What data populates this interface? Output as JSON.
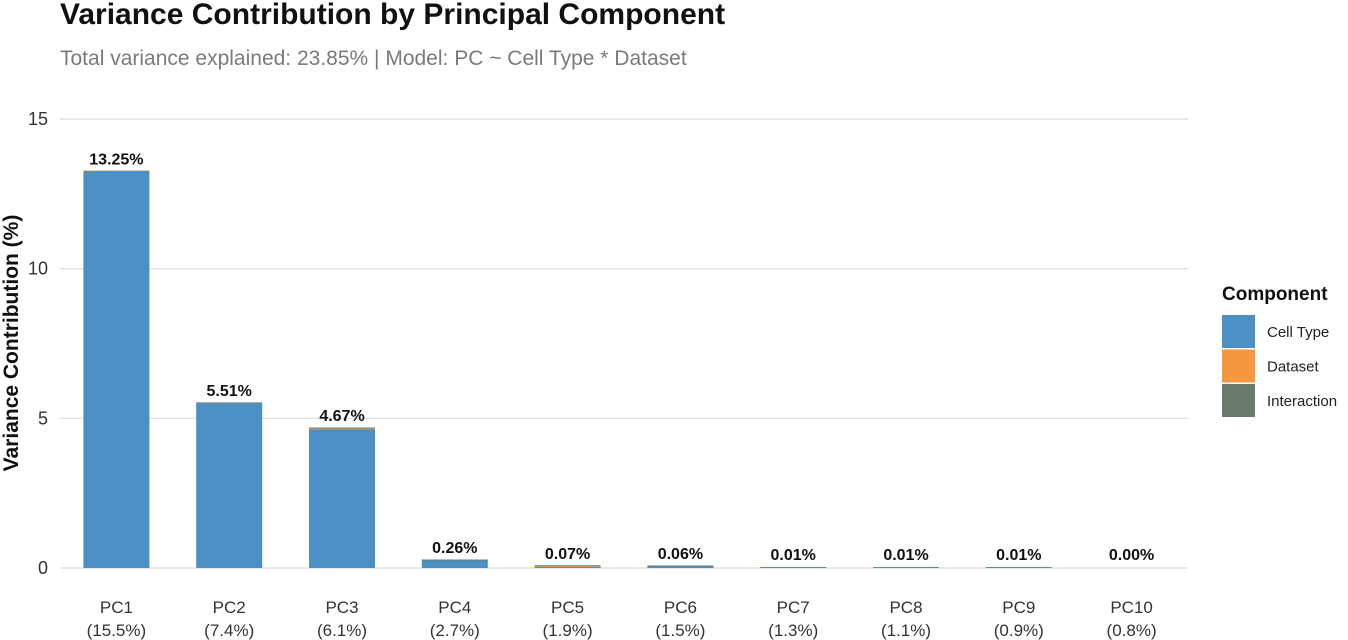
{
  "chart_data": {
    "type": "bar",
    "stacked": true,
    "title": "Variance Contribution by Principal Component",
    "subtitle": "Total variance explained: 23.85% | Model: PC ~ Cell Type * Dataset",
    "xlabel": "",
    "ylabel": "Variance Contribution (%)",
    "ylim": [
      0,
      15
    ],
    "yticks": [
      "0",
      "5",
      "10",
      "15"
    ],
    "grid": true,
    "legend_title": "Component",
    "legend_position": "right",
    "categories": [
      "PC1",
      "PC2",
      "PC3",
      "PC4",
      "PC5",
      "PC6",
      "PC7",
      "PC8",
      "PC9",
      "PC10"
    ],
    "category_sublabels": [
      "(15.5%)",
      "(7.4%)",
      "(6.1%)",
      "(2.7%)",
      "(1.9%)",
      "(1.5%)",
      "(1.3%)",
      "(1.1%)",
      "(0.9%)",
      "(0.8%)"
    ],
    "totals_labels": [
      "13.25%",
      "5.51%",
      "4.67%",
      "0.26%",
      "0.07%",
      "0.06%",
      "0.01%",
      "0.01%",
      "0.01%",
      "0.00%"
    ],
    "series": [
      {
        "name": "Cell Type",
        "color": "#4a90c4",
        "values": [
          13.23,
          5.5,
          4.63,
          0.25,
          0.04,
          0.05,
          0.01,
          0.01,
          0.01,
          0.0
        ]
      },
      {
        "name": "Dataset",
        "color": "#f4973e",
        "values": [
          0.01,
          0.0,
          0.03,
          0.0,
          0.02,
          0.0,
          0.0,
          0.0,
          0.0,
          0.0
        ]
      },
      {
        "name": "Interaction",
        "color": "#6b7a6e",
        "values": [
          0.01,
          0.01,
          0.01,
          0.01,
          0.01,
          0.01,
          0.0,
          0.0,
          0.0,
          0.0
        ]
      }
    ]
  }
}
